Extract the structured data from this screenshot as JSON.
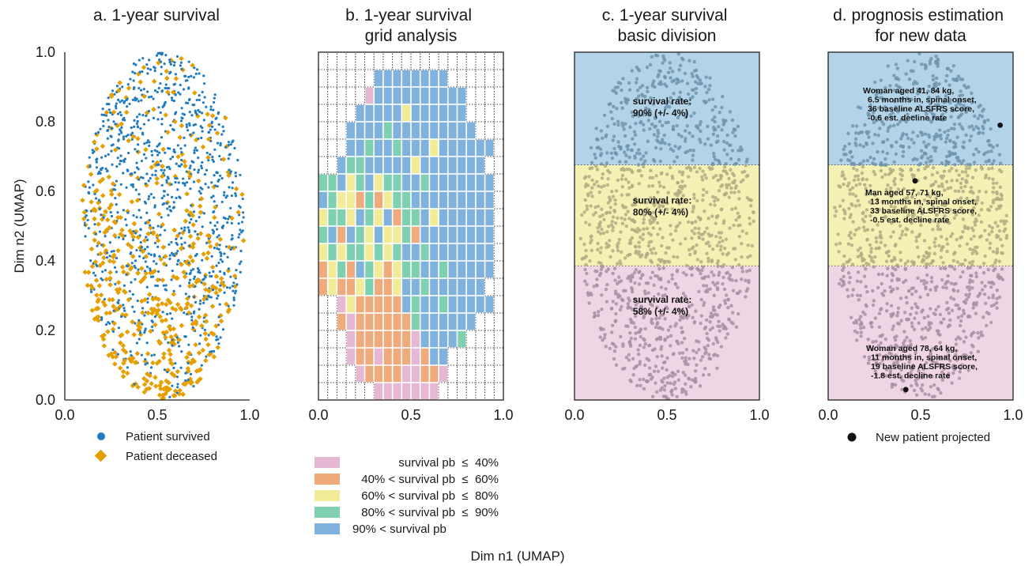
{
  "figure": {
    "xlabel": "Dim n1 (UMAP)",
    "ylabel": "Dim n2 (UMAP)"
  },
  "chart_data": [
    {
      "panel": "a",
      "type": "scatter",
      "title": [
        "a. 1-year survival"
      ],
      "xlim": [
        0,
        1
      ],
      "ylim": [
        0,
        1
      ],
      "xticks": [
        "0.0",
        "0.5",
        "1.0"
      ],
      "yticks": [
        "0.0",
        "0.2",
        "0.4",
        "0.6",
        "0.8",
        "1.0"
      ],
      "shape": {
        "center_x": 0.53,
        "center_y": 0.5,
        "half_width": 0.44,
        "half_height": 0.5
      },
      "series": [
        {
          "name": "Patient survived",
          "color": "#1f7bc0",
          "marker": "circle"
        },
        {
          "name": "Patient deceased",
          "color": "#e69f00",
          "marker": "diamond"
        }
      ],
      "legend_position": "below"
    },
    {
      "panel": "b",
      "type": "heatmap",
      "title": [
        "b. 1-year survival",
        "grid analysis"
      ],
      "xlim": [
        0,
        1
      ],
      "ylim": [
        0,
        1
      ],
      "xticks": [
        "0.0",
        "0.5",
        "1.0"
      ],
      "cols": 20,
      "rows": 20,
      "classes": [
        {
          "label": "survival pb  ≤  40%",
          "color": "#e6b8d4"
        },
        {
          "label": "40% < survival pb  ≤  60%",
          "color": "#f0ab7c"
        },
        {
          "label": "60% < survival pb  ≤  80%",
          "color": "#f2ec99"
        },
        {
          "label": "80% < survival pb  ≤  90%",
          "color": "#7dd0b0"
        },
        {
          "label": "90% < survival pb",
          "color": "#7fb2dc"
        }
      ],
      "grid": [
        "....................",
        "......44444444......",
        ".....04444444444....",
        "....444442444444....",
        "...44443444444444...",
        "...4434434442444444.",
        "..4334444424444444..",
        "3342342334434444444.",
        "4322131233444444444.",
        "2332432413342444444.",
        "3414324223144444444.",
        "2323323234434444444.",
        "1231432123344344444.",
        "121123112443444444..",
        "..02111114344344444.",
        "..101111113444444...",
        "...0111111044443....",
        "...01101110144......",
        "....0111100110......",
        "......0000000......."
      ],
      "legend_position": "below"
    },
    {
      "panel": "c",
      "type": "scatter",
      "title": [
        "c. 1-year survival",
        "basic division"
      ],
      "xlim": [
        0,
        1
      ],
      "ylim": [
        0,
        1
      ],
      "xticks": [
        "0.0",
        "0.5",
        "1.0"
      ],
      "bands": [
        {
          "y_from": 0.675,
          "y_to": 1.0,
          "color": "#b3d3e8",
          "point_color": "#6e94ad"
        },
        {
          "y_from": 0.385,
          "y_to": 0.675,
          "color": "#f5f1b4",
          "point_color": "#b3ab84"
        },
        {
          "y_from": 0.0,
          "y_to": 0.385,
          "color": "#f0d5e5",
          "point_color": "#a98fa3"
        }
      ],
      "annotations": [
        {
          "x": 0.5,
          "y": 0.85,
          "lines": [
            "survival rate:",
            "90% (+/- 4%)"
          ]
        },
        {
          "x": 0.5,
          "y": 0.565,
          "lines": [
            "survival rate:",
            "80% (+/- 4%)"
          ]
        },
        {
          "x": 0.5,
          "y": 0.28,
          "lines": [
            "survival rate:",
            "58% (+/- 4%)"
          ]
        }
      ]
    },
    {
      "panel": "d",
      "type": "scatter",
      "title": [
        "d. prognosis estimation",
        "for new data"
      ],
      "xlim": [
        0,
        1
      ],
      "ylim": [
        0,
        1
      ],
      "xticks": [
        "0.0",
        "0.5",
        "1.0"
      ],
      "series": [
        {
          "name": "New patient projected",
          "color": "#111111",
          "marker": "circle"
        }
      ],
      "new_patients": [
        {
          "x": 0.93,
          "y": 0.79,
          "lines": [
            "Woman aged 41, 84 kg,",
            "6.5 months in, spinal onset,",
            "36 baseline ALSFRS score,",
            "-0.6 est. decline rate"
          ]
        },
        {
          "x": 0.47,
          "y": 0.63,
          "lines": [
            "Man aged 57, 71 kg,",
            "13 months in, spinal onset,",
            "33 baseline ALSFRS score,",
            "-0.5 est. decline rate"
          ]
        },
        {
          "x": 0.42,
          "y": 0.03,
          "lines": [
            "Woman aged 78, 64 kg,",
            "11 months in, spinal onset,",
            "19 baseline ALSFRS score,",
            "-1.8 est. decline rate"
          ]
        }
      ],
      "legend_position": "below"
    }
  ]
}
